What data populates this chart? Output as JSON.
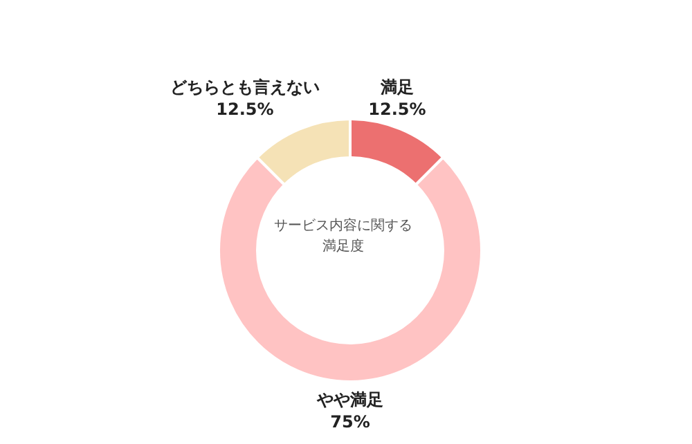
{
  "chart_data": {
    "type": "donut",
    "title": "サービス内容に関する満足度",
    "categories": [
      "満足",
      "やや満足",
      "どちらとも言えない"
    ],
    "values": [
      12.5,
      75,
      12.5
    ],
    "value_labels": [
      "12.5%",
      "75%",
      "12.5%"
    ],
    "colors": [
      "#ec7070",
      "#ffc3c3",
      "#f5e2b6"
    ]
  }
}
